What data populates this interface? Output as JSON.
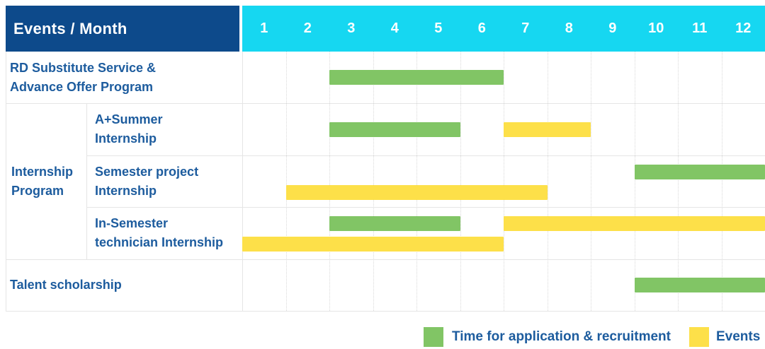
{
  "table": {
    "corner_header": "Events / Month",
    "months": [
      "1",
      "2",
      "3",
      "4",
      "5",
      "6",
      "7",
      "8",
      "9",
      "10",
      "11",
      "12"
    ],
    "rows": {
      "rd_program": {
        "line1": "RD Substitute Service &",
        "line2": "Advance Offer Program"
      },
      "internship_group": {
        "line1": "Internship",
        "line2": "Program"
      },
      "a_summer": {
        "line1": "A+Summer",
        "line2": "Internship"
      },
      "semester_project": {
        "line1": "Semester project",
        "line2": "Internship"
      },
      "in_semester": {
        "line1": "In-Semester",
        "line2": "technician Internship"
      },
      "talent": {
        "label": "Talent scholarship"
      }
    }
  },
  "legend": {
    "application": {
      "label": "Time for application & recruitment",
      "color": "#81c565"
    },
    "events": {
      "label": "Events",
      "color": "#fde049"
    }
  },
  "colors": {
    "header_dark_blue": "#0d4a8b",
    "header_cyan": "#16d7f1",
    "text_blue": "#1d5c9e",
    "bar_green": "#81c565",
    "bar_yellow": "#fde049"
  },
  "chart_data": {
    "type": "bar",
    "subtype": "gantt-schedule",
    "title": "Events / Month",
    "xlabel": "Month",
    "x_ticks": [
      1,
      2,
      3,
      4,
      5,
      6,
      7,
      8,
      9,
      10,
      11,
      12
    ],
    "x_range": [
      1,
      12
    ],
    "grid": "monthly dotted vertical lines",
    "legend_position": "bottom-right",
    "legend": [
      {
        "series": "application",
        "label": "Time for application & recruitment",
        "color": "#81c565"
      },
      {
        "series": "events",
        "label": "Events",
        "color": "#fde049"
      }
    ],
    "rows": [
      {
        "name": "RD Substitute Service & Advance Offer Program",
        "group": "",
        "bars": [
          {
            "series": "application",
            "start_month": 3,
            "end_month": 6,
            "lane": "mid"
          }
        ]
      },
      {
        "name": "A+Summer Internship",
        "group": "Internship Program",
        "bars": [
          {
            "series": "application",
            "start_month": 3,
            "end_month": 5,
            "lane": "mid"
          },
          {
            "series": "events",
            "start_month": 7,
            "end_month": 8,
            "lane": "mid"
          }
        ]
      },
      {
        "name": "Semester project Internship",
        "group": "Internship Program",
        "bars": [
          {
            "series": "application",
            "start_month": 10,
            "end_month": 12,
            "lane": "top"
          },
          {
            "series": "events",
            "start_month": 2,
            "end_month": 7,
            "lane": "bottom"
          }
        ]
      },
      {
        "name": "In-Semester technician Internship",
        "group": "Internship Program",
        "bars": [
          {
            "series": "application",
            "start_month": 3,
            "end_month": 5,
            "lane": "top"
          },
          {
            "series": "events",
            "start_month": 7,
            "end_month": 12,
            "lane": "top"
          },
          {
            "series": "events",
            "start_month": 1,
            "end_month": 6,
            "lane": "bottom"
          }
        ]
      },
      {
        "name": "Talent scholarship",
        "group": "",
        "bars": [
          {
            "series": "application",
            "start_month": 10,
            "end_month": 12,
            "lane": "mid"
          }
        ]
      }
    ]
  }
}
